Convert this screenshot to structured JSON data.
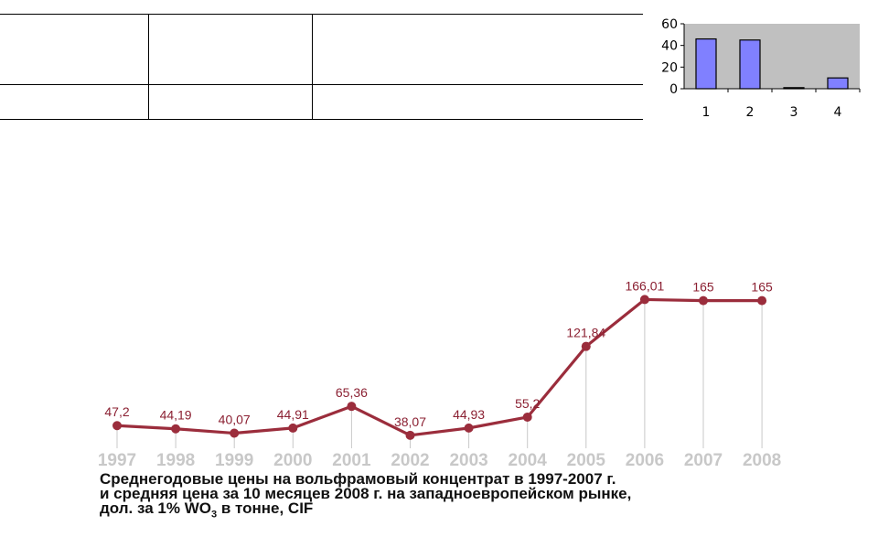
{
  "table": {
    "rows": [
      [
        "",
        "",
        ""
      ],
      [
        "",
        "",
        ""
      ]
    ]
  },
  "chart_data": [
    {
      "type": "bar",
      "categories": [
        "1",
        "2",
        "3",
        "4"
      ],
      "values": [
        46,
        45,
        1,
        10
      ],
      "yticks": [
        "0",
        "20",
        "40",
        "60"
      ],
      "ylim": [
        0,
        60
      ],
      "grid": false,
      "colors": {
        "plot_bg": "#c0c0c0",
        "bar_fill": "#8080ff",
        "bar_stroke": "#000000"
      }
    },
    {
      "type": "line",
      "x": [
        "1997",
        "1998",
        "1999",
        "2000",
        "2001",
        "2002",
        "2003",
        "2004",
        "2005",
        "2006",
        "2007",
        "2008"
      ],
      "values": [
        47.2,
        44.19,
        40.07,
        44.91,
        65.36,
        38.07,
        44.93,
        55.2,
        121.84,
        166.01,
        165,
        165
      ],
      "data_labels": [
        "47,2",
        "44,19",
        "40,07",
        "44,91",
        "65,36",
        "38,07",
        "44,93",
        "55,2",
        "121,84",
        "166,01",
        "165",
        "165"
      ],
      "ylim": [
        0,
        180
      ],
      "grid": false,
      "colors": {
        "line": "#9b2d3c",
        "label": "#8b2032",
        "drop_line": "#c8c8c8",
        "tick_label": "#c8c8c8"
      },
      "caption": {
        "line1": "Среднегодовые цены на вольфрамовый концентрат в 1997-2007 г.",
        "line2": "и средняя цена за 10 месяцев 2008 г. на западноевропейском рынке,",
        "line3_prefix": "дол. за 1% WO",
        "line3_sub": "3",
        "line3_suffix": " в тонне, CIF"
      }
    }
  ]
}
